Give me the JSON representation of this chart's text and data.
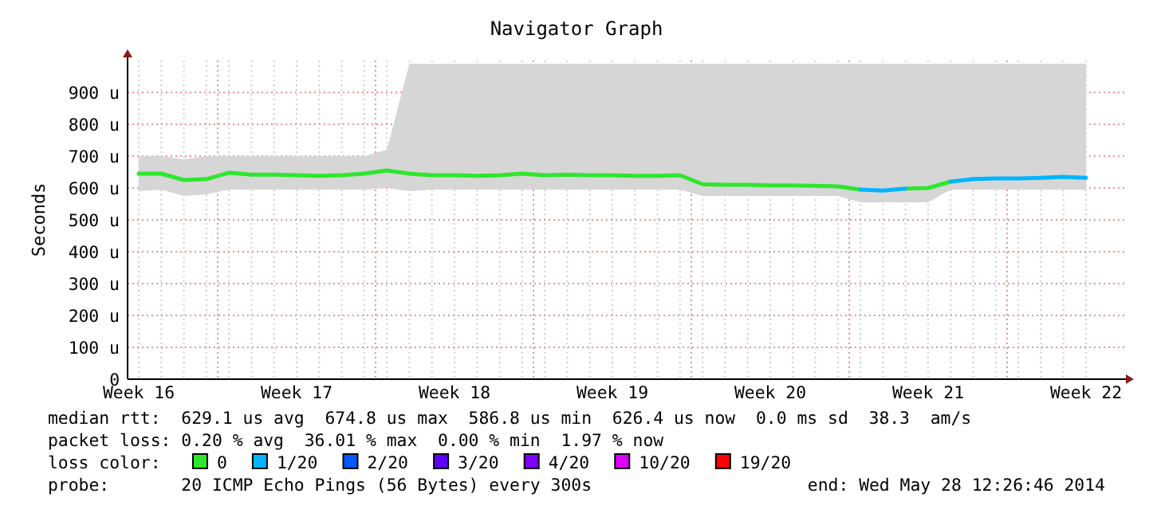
{
  "chart_data": {
    "type": "line",
    "title": "Navigator Graph",
    "ylabel": "Seconds",
    "legend_title": "loss color:",
    "legend": "bottom",
    "grid": true,
    "marker": "none",
    "line_style": "solid",
    "ylim": [
      0,
      1000
    ],
    "yticks": [
      0,
      {
        "value": 100,
        "label": "100 u"
      },
      {
        "value": 200,
        "label": "200 u"
      },
      {
        "value": 300,
        "label": "300 u"
      },
      {
        "value": 400,
        "label": "400 u"
      },
      {
        "value": 500,
        "label": "500 u"
      },
      {
        "value": 600,
        "label": "600 u"
      },
      {
        "value": 700,
        "label": "700 u"
      },
      {
        "value": 800,
        "label": "800 u"
      },
      {
        "value": 900,
        "label": "900 u"
      }
    ],
    "categories": [
      "Week 16",
      null,
      null,
      null,
      null,
      null,
      null,
      "Week 17",
      null,
      null,
      null,
      null,
      null,
      null,
      "Week 18",
      null,
      null,
      null,
      null,
      null,
      null,
      "Week 19",
      null,
      null,
      null,
      null,
      null,
      null,
      "Week 20",
      null,
      null,
      null,
      null,
      null,
      null,
      "Week 21",
      null,
      null,
      null,
      null,
      null,
      null,
      "Week 22"
    ],
    "series": [
      {
        "name": "0",
        "color": "#2ee62e",
        "values": [
          645,
          645,
          625,
          628,
          648,
          642,
          642,
          640,
          638,
          640,
          645,
          655,
          645,
          640,
          640,
          638,
          640,
          645,
          640,
          642,
          640,
          640,
          638,
          638,
          640,
          612,
          610,
          610,
          608,
          608,
          607,
          605,
          595,
          null,
          598,
          600,
          620,
          null,
          null,
          null,
          null,
          null,
          null
        ],
        "lower": [
          590,
          595,
          575,
          580,
          595,
          595,
          595,
          595,
          595,
          595,
          595,
          600,
          590,
          595,
          595,
          595,
          595,
          595,
          595,
          595,
          595,
          595,
          595,
          595,
          595,
          575,
          575,
          575,
          575,
          575,
          575,
          575,
          555,
          555,
          555,
          555,
          595,
          595,
          595,
          595,
          595,
          595,
          595
        ],
        "upper": [
          700,
          700,
          690,
          700,
          700,
          700,
          700,
          700,
          700,
          700,
          700,
          720,
          990,
          990,
          990,
          990,
          990,
          990,
          990,
          990,
          990,
          990,
          990,
          990,
          990,
          990,
          990,
          990,
          990,
          990,
          990,
          990,
          990,
          990,
          990,
          990,
          990,
          990,
          990,
          990,
          990,
          990,
          990
        ]
      },
      {
        "name": "1/20",
        "color": "#00b4ff",
        "values": [
          null,
          null,
          null,
          null,
          null,
          null,
          null,
          null,
          null,
          null,
          null,
          null,
          null,
          null,
          null,
          null,
          null,
          null,
          null,
          null,
          null,
          null,
          null,
          null,
          null,
          null,
          null,
          null,
          null,
          null,
          null,
          null,
          595,
          592,
          598,
          null,
          620,
          628,
          630,
          630,
          632,
          635,
          632
        ]
      },
      {
        "name": "2/20",
        "color": "#0059ff",
        "values": [
          null,
          null,
          null,
          null,
          null,
          null,
          null,
          null,
          null,
          null,
          null,
          null,
          null,
          null,
          null,
          null,
          null,
          null,
          null,
          null,
          null,
          null,
          null,
          null,
          null,
          null,
          null,
          null,
          null,
          null,
          null,
          null,
          null,
          null,
          null,
          null,
          null,
          null,
          null,
          null,
          null,
          null,
          null
        ]
      },
      {
        "name": "3/20",
        "color": "#5e00ff",
        "values": [
          null,
          null,
          null,
          null,
          null,
          null,
          null,
          null,
          null,
          null,
          null,
          null,
          null,
          null,
          null,
          null,
          null,
          null,
          null,
          null,
          null,
          null,
          null,
          null,
          null,
          null,
          null,
          null,
          null,
          null,
          null,
          null,
          null,
          null,
          null,
          null,
          null,
          null,
          null,
          null,
          null,
          null,
          null
        ]
      },
      {
        "name": "4/20",
        "color": "#7e00ff",
        "values": [
          null,
          null,
          null,
          null,
          null,
          null,
          null,
          null,
          null,
          null,
          null,
          null,
          null,
          null,
          null,
          null,
          null,
          null,
          null,
          null,
          null,
          null,
          null,
          null,
          null,
          null,
          null,
          null,
          null,
          null,
          null,
          null,
          null,
          null,
          null,
          null,
          null,
          null,
          null,
          null,
          null,
          null,
          null
        ]
      },
      {
        "name": "10/20",
        "color": "#dd00ff",
        "values": [
          null,
          null,
          null,
          null,
          null,
          null,
          null,
          null,
          null,
          null,
          null,
          null,
          null,
          null,
          null,
          null,
          null,
          null,
          null,
          null,
          null,
          null,
          null,
          null,
          null,
          null,
          null,
          null,
          null,
          null,
          null,
          null,
          null,
          null,
          null,
          null,
          null,
          null,
          null,
          null,
          null,
          null,
          null
        ]
      },
      {
        "name": "19/20",
        "color": "#ff0000",
        "values": [
          null,
          null,
          null,
          null,
          null,
          null,
          null,
          null,
          null,
          null,
          null,
          null,
          null,
          null,
          null,
          null,
          null,
          null,
          null,
          null,
          null,
          null,
          null,
          null,
          null,
          null,
          null,
          null,
          null,
          null,
          null,
          null,
          null,
          null,
          null,
          null,
          null,
          null,
          null,
          null,
          null,
          null,
          null
        ]
      }
    ],
    "annotations": [
      "median rtt:  629.1 us avg  674.8 us max  586.8 us min  626.4 us now  0.0 ms sd  38.3  am/s",
      "packet loss: 0.20 % avg  36.01 % max  0.00 % min  1.97 % now",
      "probe:       20 ICMP Echo Pings (56 Bytes) every 300s",
      "end: Wed May 28 12:26:46 2014"
    ]
  }
}
